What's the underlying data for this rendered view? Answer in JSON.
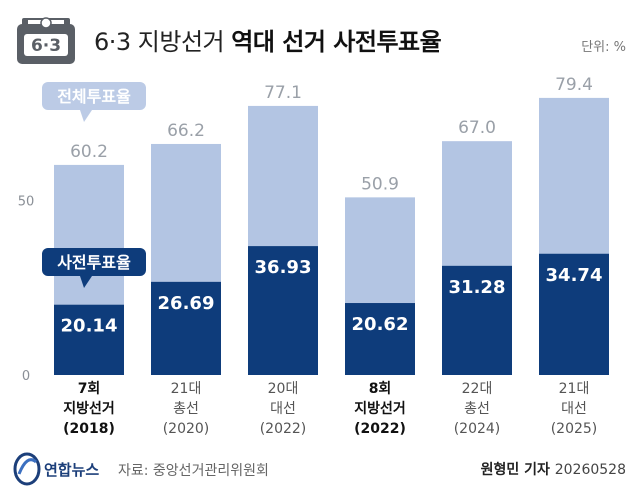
{
  "header": {
    "title_main": "6·3 지방선거",
    "title_bold": "역대 선거 사전투표율",
    "icon_text": "6·3",
    "unit": "단위: %"
  },
  "chart_data": {
    "type": "bar",
    "categories": [
      [
        "7회",
        "지방선거",
        "(2018)"
      ],
      [
        "21대",
        "총선",
        "(2020)"
      ],
      [
        "20대",
        "대선",
        "(2022)"
      ],
      [
        "8회",
        "지방선거",
        "(2022)"
      ],
      [
        "22대",
        "총선",
        "(2024)"
      ],
      [
        "21대",
        "대선",
        "(2025)"
      ]
    ],
    "bold_categories": [
      0,
      3
    ],
    "series": [
      {
        "name": "전체투표율",
        "values": [
          60.2,
          66.2,
          77.1,
          50.9,
          67.0,
          79.4
        ],
        "labels": [
          "60.2",
          "66.2",
          "77.1",
          "50.9",
          "67.0",
          "79.4"
        ]
      },
      {
        "name": "사전투표율",
        "values": [
          20.14,
          26.69,
          36.93,
          20.62,
          31.28,
          34.74
        ],
        "labels": [
          "20.14",
          "26.69",
          "36.93",
          "20.62",
          "31.28",
          "34.74"
        ]
      }
    ],
    "yticks": [
      "0",
      "50"
    ],
    "ylim": [
      0,
      100
    ],
    "colors": {
      "total": "#b3c5e3",
      "early": "#0e3c7b",
      "total_label": "#9aa0a8",
      "tag_total": "#bccbe6",
      "tag_early": "#0e3c7b"
    }
  },
  "footer": {
    "brand": "연합뉴스",
    "source": "자료: 중앙선거관리위원회",
    "author": "원형민 기자",
    "date": "20260528"
  }
}
